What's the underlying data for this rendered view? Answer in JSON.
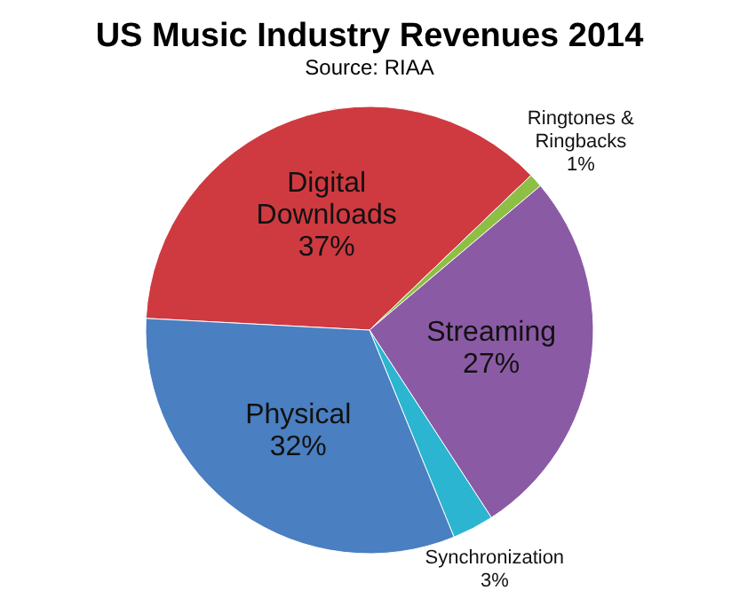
{
  "chart_data": {
    "type": "pie",
    "title": "US Music Industry Revenues 2014",
    "subtitle": "Source: RIAA",
    "categories": [
      "Digital Downloads",
      "Ringtones & Ringbacks",
      "Streaming",
      "Synchronization",
      "Physical"
    ],
    "values": [
      37,
      1,
      27,
      3,
      32
    ],
    "colors": [
      "#cf3a40",
      "#8dbf45",
      "#8b5aa5",
      "#2bb5d0",
      "#4a7fc1"
    ],
    "value_labels": [
      "37%",
      "1%",
      "27%",
      "3%",
      "32%"
    ],
    "legend": false
  }
}
